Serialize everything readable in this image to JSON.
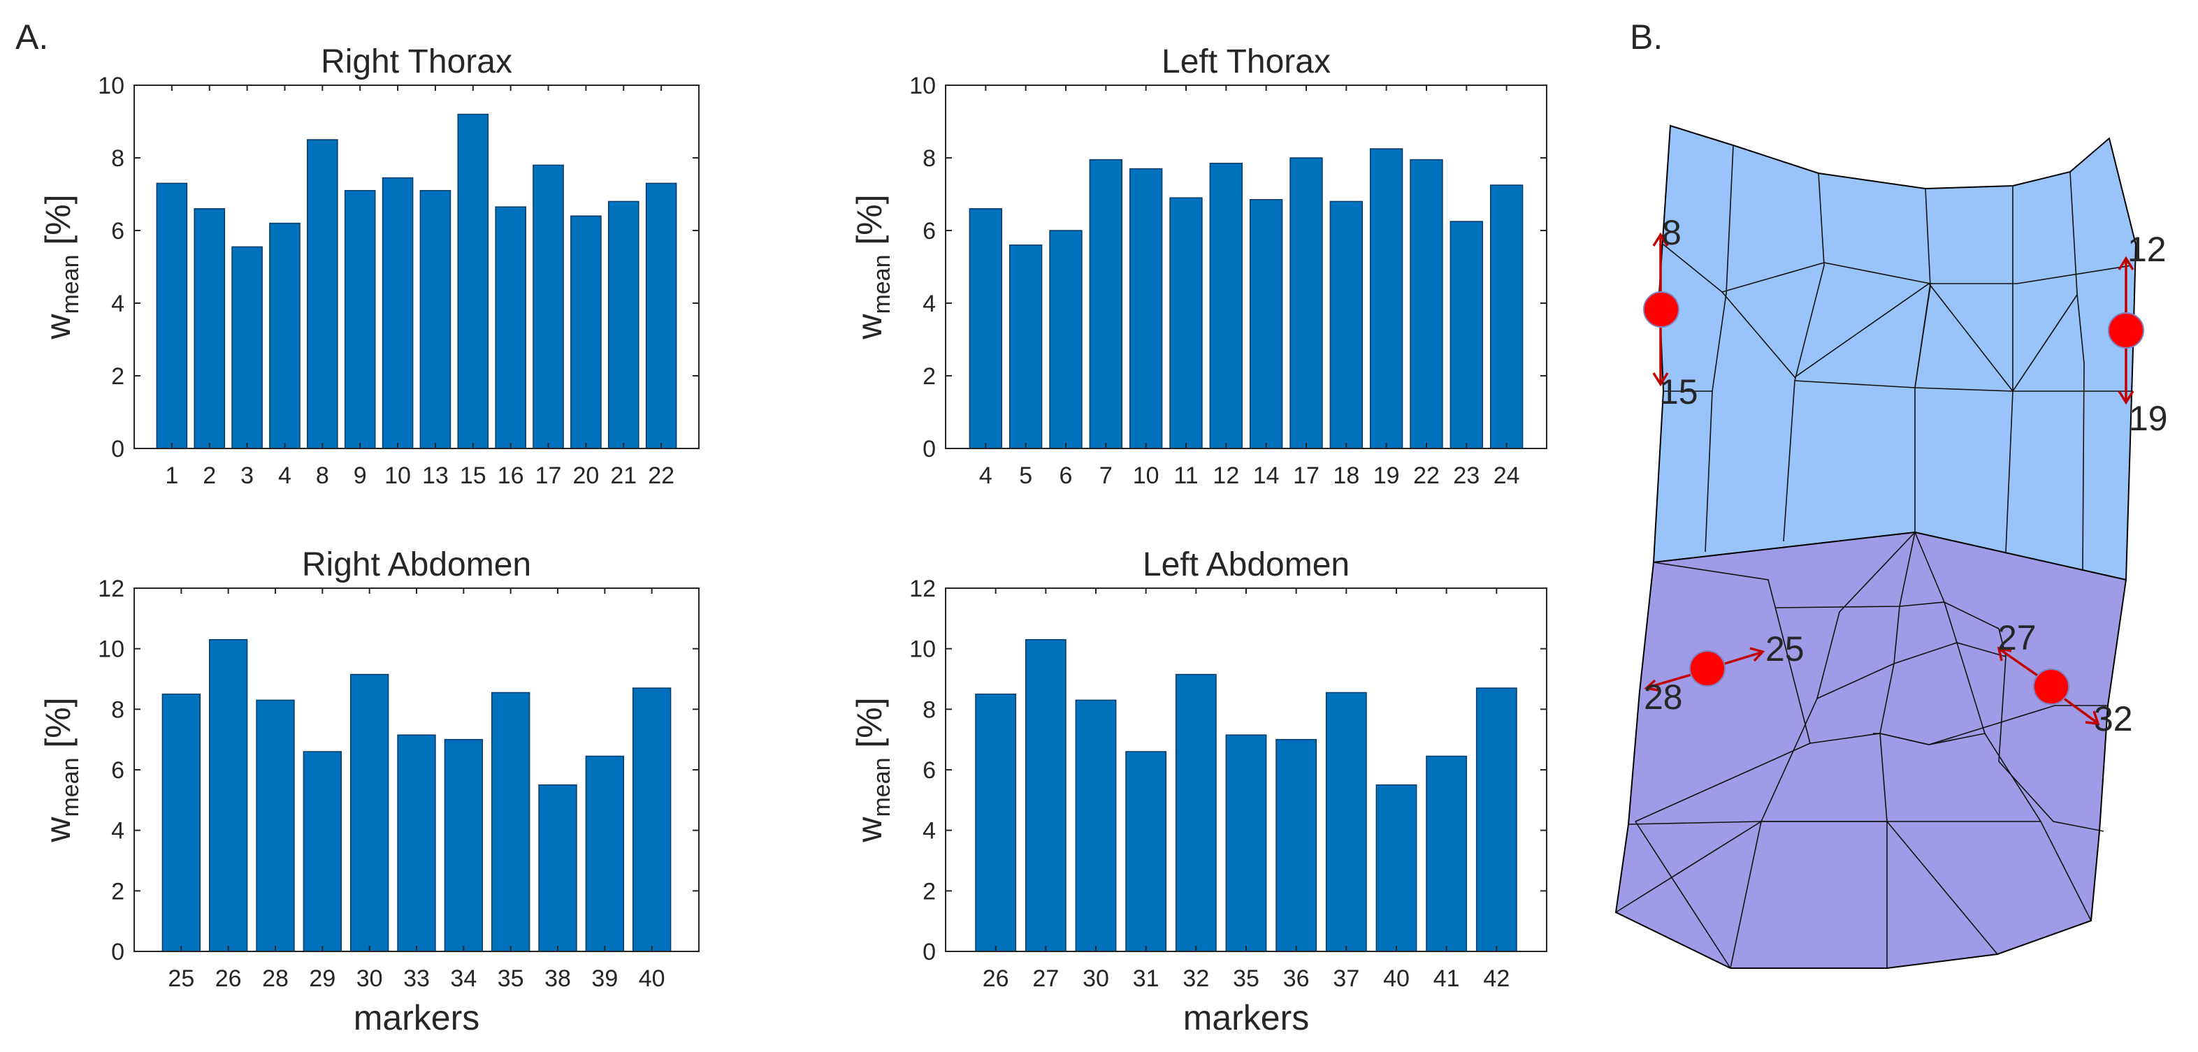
{
  "panel_labels": {
    "a": "A.",
    "b": "B."
  },
  "colors": {
    "bar": "#0072BD",
    "axis": "#262626",
    "thorax_mesh": "#99C4FA",
    "abdomen_mesh": "#9F9BE6",
    "marker": "#FF0000",
    "arrow": "#C00000"
  },
  "chart_data": [
    {
      "type": "bar",
      "title": "Right Thorax",
      "ylabel": "w_mean [%]",
      "xlabel": "",
      "ylim": [
        0,
        10
      ],
      "yticks": [
        0,
        2,
        4,
        6,
        8,
        10
      ],
      "categories": [
        "1",
        "2",
        "3",
        "4",
        "8",
        "9",
        "10",
        "13",
        "15",
        "16",
        "17",
        "20",
        "21",
        "22"
      ],
      "values": [
        7.3,
        6.6,
        5.55,
        6.2,
        8.5,
        7.1,
        7.45,
        7.1,
        9.2,
        6.65,
        7.8,
        6.4,
        6.8,
        7.3
      ]
    },
    {
      "type": "bar",
      "title": "Left Thorax",
      "ylabel": "w_mean [%]",
      "xlabel": "",
      "ylim": [
        0,
        10
      ],
      "yticks": [
        0,
        2,
        4,
        6,
        8,
        10
      ],
      "categories": [
        "4",
        "5",
        "6",
        "7",
        "10",
        "11",
        "12",
        "14",
        "17",
        "18",
        "19",
        "22",
        "23",
        "24"
      ],
      "values": [
        6.6,
        5.6,
        6.0,
        7.95,
        7.7,
        6.9,
        7.85,
        6.85,
        8.0,
        6.8,
        8.25,
        7.95,
        6.25,
        7.25
      ]
    },
    {
      "type": "bar",
      "title": "Right Abdomen",
      "ylabel": "w_mean [%]",
      "xlabel": "markers",
      "ylim": [
        0,
        12
      ],
      "yticks": [
        0,
        2,
        4,
        6,
        8,
        10,
        12
      ],
      "categories": [
        "25",
        "26",
        "28",
        "29",
        "30",
        "33",
        "34",
        "35",
        "38",
        "39",
        "40"
      ],
      "values": [
        8.5,
        10.3,
        8.3,
        6.6,
        9.15,
        7.15,
        7.0,
        8.55,
        5.5,
        6.45,
        8.7
      ]
    },
    {
      "type": "bar",
      "title": "Left Abdomen",
      "ylabel": "w_mean [%]",
      "xlabel": "markers",
      "ylim": [
        0,
        12
      ],
      "yticks": [
        0,
        2,
        4,
        6,
        8,
        10,
        12
      ],
      "categories": [
        "26",
        "27",
        "30",
        "31",
        "32",
        "35",
        "36",
        "37",
        "40",
        "41",
        "42"
      ],
      "values": [
        8.5,
        10.3,
        8.3,
        6.6,
        9.15,
        7.15,
        7.0,
        8.55,
        5.5,
        6.45,
        8.7
      ]
    }
  ],
  "ylabel_parts": {
    "main": "w",
    "sub": "mean",
    "unit": "[%]"
  },
  "diagram": {
    "marker_labels": [
      "8",
      "15",
      "12",
      "19",
      "25",
      "28",
      "27",
      "32"
    ]
  }
}
